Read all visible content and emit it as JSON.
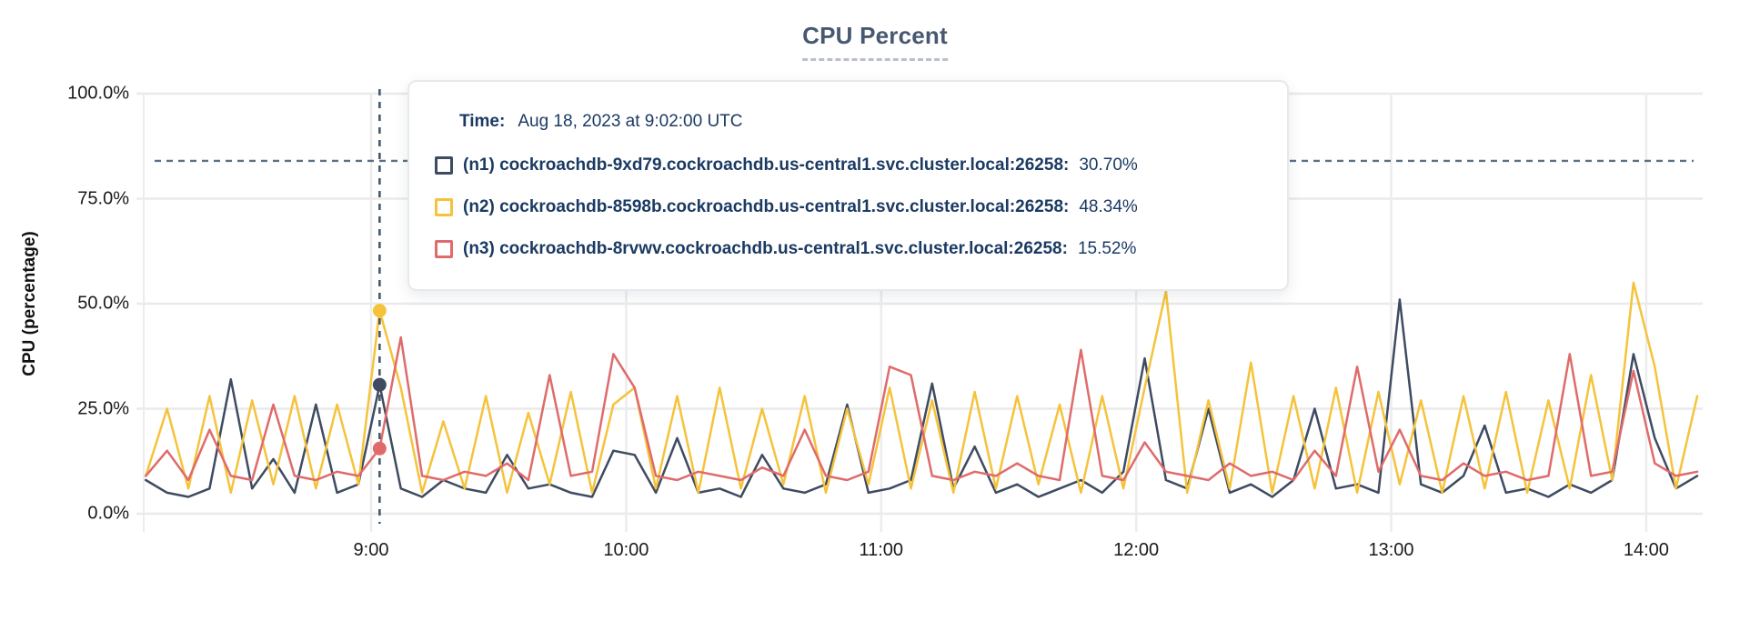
{
  "chart": {
    "title": "CPU Percent",
    "y_axis_label": "CPU (percentage)"
  },
  "colors": {
    "n1": "#3e4b61",
    "n2": "#f5c33b",
    "n3": "#df6b6b",
    "grid": "#eaeaea",
    "grid_vertical": "#ececec",
    "threshold_line": "#5b7083",
    "hover_line": "#46586e",
    "title_text": "#475872",
    "tooltip_text": "#1b3a63",
    "axis_text": "#1a1a1a"
  },
  "tooltip": {
    "time_label": "Time:",
    "time_value": "Aug 18, 2023 at 9:02:00 UTC",
    "rows": [
      {
        "series": "n1",
        "label": "(n1) cockroachdb-9xd79.cockroachdb.us-central1.svc.cluster.local:26258:",
        "value": "30.70%"
      },
      {
        "series": "n2",
        "label": "(n2) cockroachdb-8598b.cockroachdb.us-central1.svc.cluster.local:26258:",
        "value": "48.34%"
      },
      {
        "series": "n3",
        "label": "(n3) cockroachdb-8rvwv.cockroachdb.us-central1.svc.cluster.local:26258:",
        "value": "15.52%"
      }
    ]
  },
  "chart_data": {
    "type": "line",
    "title": "CPU Percent",
    "xlabel": "",
    "ylabel": "CPU (percentage)",
    "ylim": [
      0,
      100
    ],
    "grid": true,
    "y_ticks": [
      {
        "value": 0,
        "label": "0.0%"
      },
      {
        "value": 25,
        "label": "25.0%"
      },
      {
        "value": 50,
        "label": "50.0%"
      },
      {
        "value": 75,
        "label": "75.0%"
      },
      {
        "value": 100,
        "label": "100.0%"
      }
    ],
    "x_ticks": [
      {
        "minutes": 540,
        "label": "9:00"
      },
      {
        "minutes": 600,
        "label": "10:00"
      },
      {
        "minutes": 660,
        "label": "11:00"
      },
      {
        "minutes": 720,
        "label": "12:00"
      },
      {
        "minutes": 780,
        "label": "13:00"
      },
      {
        "minutes": 840,
        "label": "14:00"
      }
    ],
    "x_range_minutes": [
      486.5,
      853.5
    ],
    "t_start_minutes": 487,
    "t_step_minutes": 5,
    "threshold_percent": 84,
    "hover": {
      "minutes": 542,
      "time": "Aug 18, 2023 at 9:02:00 UTC",
      "values": {
        "n1": 30.7,
        "n2": 48.34,
        "n3": 15.52
      }
    },
    "series": [
      {
        "id": "n1",
        "name": "cockroachdb-9xd79.cockroachdb.us-central1.svc.cluster.local:26258",
        "color": "#3e4b61",
        "values": [
          8,
          5,
          4,
          6,
          32,
          6,
          13,
          5,
          26,
          5,
          7,
          30.7,
          6,
          4,
          8,
          6,
          5,
          14,
          6,
          7,
          5,
          4,
          15,
          14,
          5,
          18,
          5,
          6,
          4,
          14,
          6,
          5,
          7,
          26,
          5,
          6,
          8,
          31,
          6,
          16,
          5,
          7,
          4,
          6,
          8,
          5,
          10,
          37,
          8,
          6,
          25,
          5,
          7,
          4,
          8,
          25,
          6,
          7,
          5,
          51,
          7,
          5,
          9,
          21,
          5,
          6,
          4,
          7,
          5,
          8,
          38,
          18,
          6,
          9
        ]
      },
      {
        "id": "n2",
        "name": "cockroachdb-8598b.cockroachdb.us-central1.svc.cluster.local:26258",
        "color": "#f5c33b",
        "values": [
          9,
          25,
          6,
          28,
          5,
          27,
          7,
          28,
          6,
          26,
          7,
          48.34,
          30,
          5,
          22,
          6,
          28,
          5,
          24,
          7,
          29,
          5,
          26,
          30,
          6,
          28,
          5,
          30,
          6,
          25,
          7,
          28,
          5,
          25,
          7,
          30,
          6,
          27,
          5,
          29,
          6,
          28,
          7,
          26,
          5,
          28,
          6,
          30,
          53,
          5,
          27,
          6,
          36,
          5,
          28,
          6,
          30,
          5,
          29,
          7,
          27,
          5,
          28,
          6,
          29,
          5,
          27,
          6,
          33,
          8,
          55,
          35,
          6,
          28
        ]
      },
      {
        "id": "n3",
        "name": "cockroachdb-8rvwv.cockroachdb.us-central1.svc.cluster.local:26258",
        "color": "#df6b6b",
        "values": [
          9,
          15,
          8,
          20,
          9,
          8,
          26,
          9,
          8,
          10,
          9,
          15.52,
          42,
          9,
          8,
          10,
          9,
          12,
          8,
          33,
          9,
          10,
          38,
          30,
          9,
          8,
          10,
          9,
          8,
          11,
          9,
          20,
          9,
          8,
          10,
          35,
          33,
          9,
          8,
          10,
          9,
          12,
          9,
          8,
          39,
          9,
          8,
          17,
          10,
          9,
          8,
          12,
          9,
          10,
          8,
          15,
          9,
          35,
          10,
          20,
          9,
          8,
          12,
          9,
          10,
          8,
          9,
          38,
          9,
          10,
          34,
          12,
          9,
          10
        ]
      }
    ]
  }
}
